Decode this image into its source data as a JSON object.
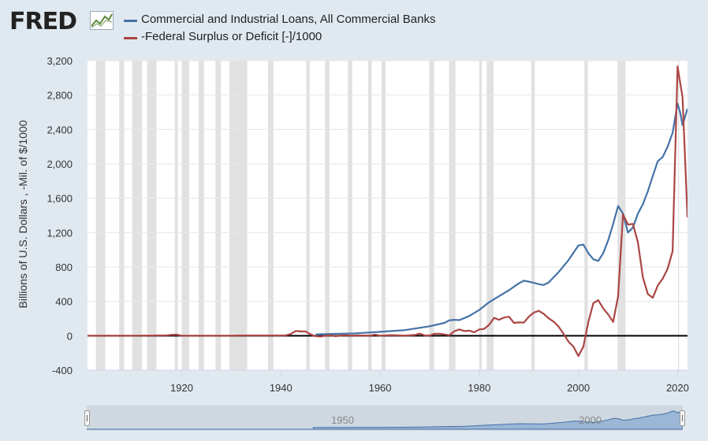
{
  "header": {
    "logo_text": "FRED",
    "logo_icon": "line-chart-icon"
  },
  "colors": {
    "background": "#e1e9f0",
    "plot_background": "#ffffff",
    "recession_band": "#e1e1e1",
    "series_loans": "#4572a7",
    "series_deficit": "#aa4643",
    "zero_line": "#000000",
    "navigator_area": "#9bb6d6"
  },
  "navigator": {
    "tick_labels": [
      "1950",
      "2000"
    ]
  },
  "chart_data": {
    "type": "line",
    "title": "",
    "xlabel": "",
    "ylabel": "Billions of U.S. Dollars , -Mil. of $/1000",
    "xlim": [
      1901,
      2022
    ],
    "ylim": [
      -400,
      3200
    ],
    "yticks": [
      -400,
      0,
      400,
      800,
      1200,
      1600,
      2000,
      2400,
      2800,
      3200
    ],
    "ytick_labels": [
      "-400",
      "0",
      "400",
      "800",
      "1,200",
      "1,600",
      "2,000",
      "2,400",
      "2,800",
      "3,200"
    ],
    "xticks": [
      1920,
      1940,
      1960,
      1980,
      2000,
      2020
    ],
    "xtick_labels": [
      "1920",
      "1940",
      "1960",
      "1980",
      "2000",
      "2020"
    ],
    "grid": "horizontal",
    "legend_position": "top",
    "recessions": [
      [
        1902.7,
        1904.6
      ],
      [
        1907.4,
        1908.4
      ],
      [
        1910.0,
        1912.0
      ],
      [
        1913.0,
        1914.9
      ],
      [
        1918.6,
        1919.2
      ],
      [
        1920.0,
        1921.5
      ],
      [
        1923.4,
        1924.5
      ],
      [
        1926.8,
        1927.9
      ],
      [
        1929.6,
        1933.2
      ],
      [
        1937.4,
        1938.5
      ],
      [
        1945.1,
        1945.8
      ],
      [
        1948.9,
        1949.8
      ],
      [
        1953.5,
        1954.4
      ],
      [
        1957.6,
        1958.3
      ],
      [
        1960.3,
        1961.1
      ],
      [
        1969.9,
        1970.9
      ],
      [
        1973.9,
        1975.2
      ],
      [
        1980.0,
        1980.5
      ],
      [
        1981.5,
        1982.9
      ],
      [
        1990.5,
        1991.2
      ],
      [
        2001.2,
        2001.9
      ],
      [
        2007.9,
        2009.5
      ],
      [
        2020.1,
        2020.3
      ]
    ],
    "series": [
      {
        "name": "Commercial and Industrial Loans, All Commercial Banks",
        "color": "#4572a7",
        "x": [
          1947,
          1950,
          1955,
          1960,
          1965,
          1970,
          1973,
          1974,
          1975,
          1976,
          1978,
          1980,
          1982,
          1984,
          1986,
          1988,
          1989,
          1990,
          1992,
          1993,
          1994,
          1996,
          1998,
          2000,
          2001,
          2002,
          2003,
          2004,
          2005,
          2006,
          2007,
          2008,
          2009,
          2010,
          2011,
          2012,
          2013,
          2014,
          2015,
          2016,
          2017,
          2018,
          2019,
          2020,
          2020.5,
          2021,
          2022
        ],
        "y": [
          15,
          20,
          28,
          45,
          65,
          110,
          150,
          180,
          185,
          182,
          230,
          300,
          390,
          460,
          530,
          610,
          640,
          630,
          600,
          590,
          620,
          740,
          880,
          1050,
          1060,
          960,
          890,
          870,
          960,
          1110,
          1300,
          1510,
          1420,
          1200,
          1260,
          1420,
          1530,
          1680,
          1860,
          2030,
          2080,
          2200,
          2360,
          2700,
          2600,
          2450,
          2640
        ]
      },
      {
        "name": "-Federal Surplus or Deficit [-]/1000",
        "color": "#aa4643",
        "x": [
          1901,
          1910,
          1917,
          1918,
          1919,
          1920,
          1921,
          1930,
          1931,
          1932,
          1933,
          1935,
          1940,
          1941,
          1942,
          1943,
          1944,
          1945,
          1946,
          1947,
          1948,
          1949,
          1950,
          1951,
          1952,
          1953,
          1954,
          1955,
          1958,
          1959,
          1960,
          1962,
          1965,
          1967,
          1968,
          1969,
          1970,
          1971,
          1972,
          1973,
          1974,
          1975,
          1976,
          1977,
          1978,
          1979,
          1980,
          1981,
          1982,
          1983,
          1984,
          1985,
          1986,
          1987,
          1988,
          1989,
          1990,
          1991,
          1992,
          1993,
          1994,
          1995,
          1996,
          1997,
          1998,
          1999,
          2000,
          2001,
          2002,
          2003,
          2004,
          2005,
          2006,
          2007,
          2008,
          2009,
          2010,
          2011,
          2012,
          2013,
          2014,
          2015,
          2016,
          2017,
          2018,
          2019,
          2020,
          2021,
          2022
        ],
        "y": [
          0,
          0,
          5,
          10,
          12,
          0,
          0,
          0,
          2,
          3,
          3,
          3,
          3,
          5,
          20,
          55,
          50,
          50,
          15,
          -5,
          -10,
          0,
          5,
          -5,
          2,
          7,
          2,
          3,
          2,
          13,
          0,
          7,
          2,
          9,
          25,
          3,
          3,
          23,
          23,
          15,
          6,
          53,
          74,
          54,
          59,
          41,
          74,
          79,
          128,
          208,
          185,
          212,
          221,
          150,
          155,
          153,
          221,
          269,
          290,
          255,
          203,
          164,
          107,
          22,
          -69,
          -126,
          -236,
          -128,
          158,
          378,
          413,
          318,
          248,
          161,
          459,
          1413,
          1294,
          1300,
          1087,
          680,
          485,
          442,
          585,
          665,
          779,
          984,
          3132,
          2775,
          1375
        ]
      }
    ]
  }
}
